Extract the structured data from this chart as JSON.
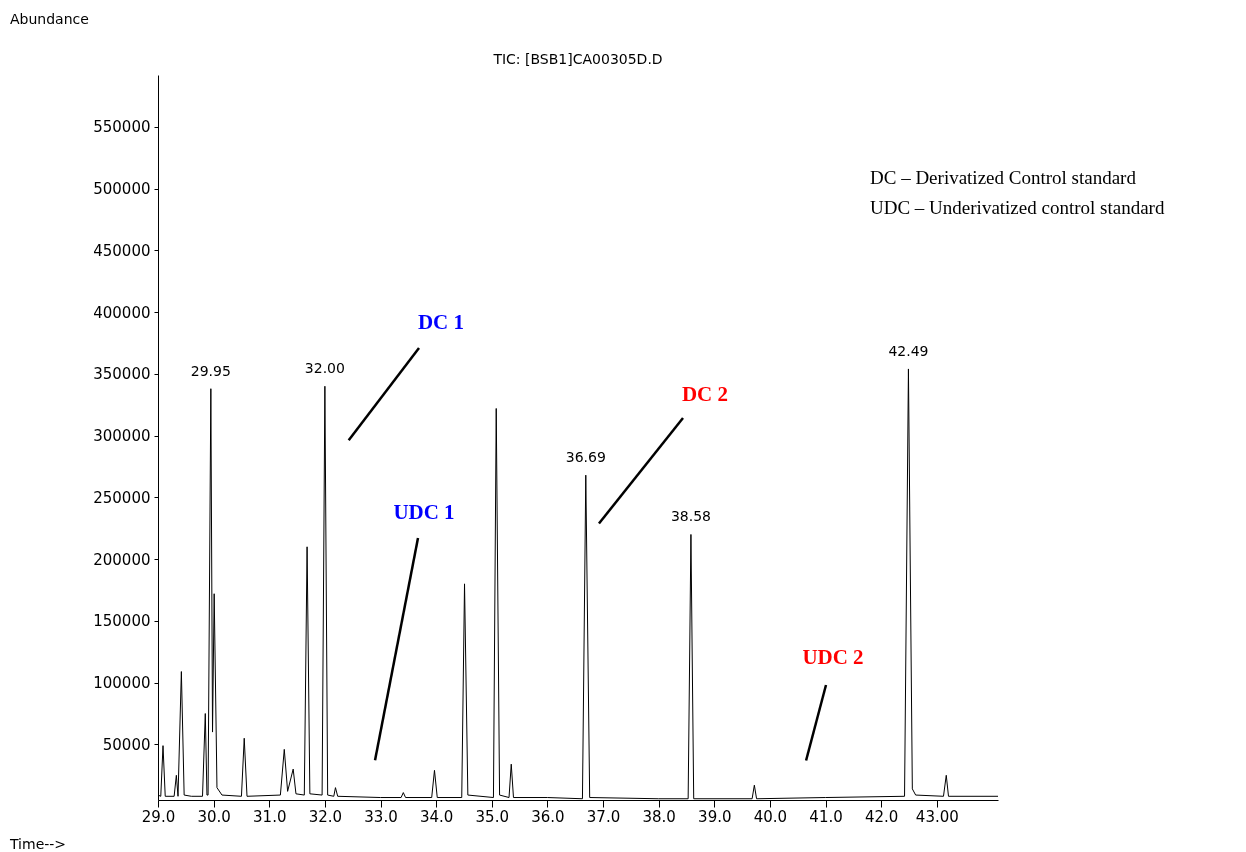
{
  "chart_data": {
    "type": "line",
    "title": "TIC: [BSB1]CA00305D.D",
    "xlabel": "Time-->",
    "ylabel": "Abundance",
    "x": [
      29.0,
      29.05,
      29.09,
      29.13,
      29.29,
      29.33,
      29.36,
      29.42,
      29.47,
      29.6,
      29.8,
      29.85,
      29.88,
      29.9,
      29.95,
      29.98,
      30.01,
      30.06,
      30.15,
      30.5,
      30.55,
      30.6,
      31.2,
      31.27,
      31.33,
      31.43,
      31.48,
      31.63,
      31.68,
      31.73,
      31.95,
      32.0,
      32.05,
      32.16,
      32.19,
      32.23,
      33.0,
      33.37,
      33.41,
      33.45,
      33.92,
      33.97,
      34.02,
      34.46,
      34.51,
      34.57,
      35.03,
      35.08,
      35.14,
      35.31,
      35.35,
      35.39,
      36.0,
      36.63,
      36.69,
      36.76,
      38.0,
      38.53,
      38.58,
      38.63,
      39.68,
      39.72,
      39.76,
      41.0,
      42.42,
      42.49,
      42.56,
      42.62,
      43.12,
      43.17,
      43.21,
      44.1
    ],
    "series": [
      {
        "color": "#000000",
        "values": [
          9000,
          8000,
          49000,
          8000,
          8000,
          25000,
          8000,
          109000,
          9000,
          8000,
          8000,
          75000,
          9000,
          9000,
          338000,
          60000,
          172000,
          15000,
          9000,
          8000,
          55000,
          8000,
          9000,
          46000,
          12000,
          30000,
          10000,
          9000,
          210000,
          10000,
          9000,
          340000,
          9000,
          8000,
          15000,
          8000,
          7000,
          7000,
          11000,
          7000,
          7000,
          29000,
          7000,
          7000,
          180000,
          9000,
          7000,
          322000,
          9000,
          7000,
          34000,
          7000,
          7000,
          6000,
          268000,
          7000,
          6000,
          6000,
          220000,
          6000,
          6000,
          17000,
          6000,
          7000,
          8000,
          354000,
          14000,
          9000,
          8000,
          25000,
          8000,
          8000
        ]
      }
    ],
    "xlim": [
      29,
      44.1
    ],
    "ylim": [
      5000,
      592000
    ],
    "xticks": [
      {
        "value": 29,
        "label": "29.0"
      },
      {
        "value": 30,
        "label": "30.0"
      },
      {
        "value": 31,
        "label": "31.0"
      },
      {
        "value": 32,
        "label": "32.0"
      },
      {
        "value": 33,
        "label": "33.0"
      },
      {
        "value": 34,
        "label": "34.0"
      },
      {
        "value": 35,
        "label": "35.0"
      },
      {
        "value": 36,
        "label": "36.0"
      },
      {
        "value": 37,
        "label": "37.0"
      },
      {
        "value": 38,
        "label": "38.0"
      },
      {
        "value": 39,
        "label": "39.0"
      },
      {
        "value": 40,
        "label": "40.0"
      },
      {
        "value": 41,
        "label": "41.0"
      },
      {
        "value": 42,
        "label": "42.0"
      },
      {
        "value": 43,
        "label": "43.00"
      }
    ],
    "yticks": [
      50000,
      100000,
      150000,
      200000,
      250000,
      300000,
      350000,
      400000,
      450000,
      500000,
      550000
    ],
    "grid": false,
    "annotations": [
      "DC – Derivatized Control standard",
      "UDC – Underivatized control standard",
      {
        "text": "29.95",
        "x": 29.95,
        "y": 338000
      },
      {
        "text": "32.00",
        "x": 32.0,
        "y": 340000
      },
      {
        "text": "36.69",
        "x": 36.69,
        "y": 268000
      },
      {
        "text": "38.58",
        "x": 38.58,
        "y": 220000
      },
      {
        "text": "42.49",
        "x": 42.49,
        "y": 354000
      },
      "DC 1",
      "UDC 1",
      "DC 2",
      "UDC 2"
    ]
  }
}
